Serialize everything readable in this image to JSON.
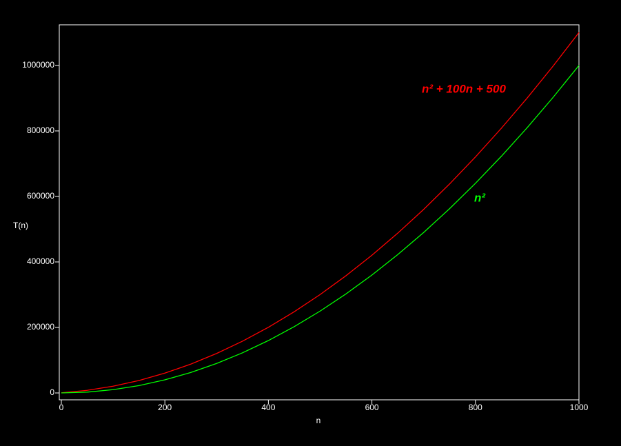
{
  "chart_data": {
    "type": "line",
    "x_label": "n",
    "y_label": "T(n)",
    "x": [
      0,
      50,
      100,
      150,
      200,
      250,
      300,
      350,
      400,
      450,
      500,
      550,
      600,
      650,
      700,
      750,
      800,
      850,
      900,
      950,
      1000
    ],
    "series": [
      {
        "name": "n² + 100n + 500",
        "color": "#ff0000",
        "values": [
          500,
          8000,
          20500,
          38000,
          60500,
          88000,
          120500,
          158000,
          200500,
          248000,
          300500,
          358000,
          420500,
          488000,
          560500,
          638000,
          720500,
          808000,
          900500,
          998000,
          1100500
        ]
      },
      {
        "name": "n²",
        "color": "#00ff00",
        "values": [
          0,
          2500,
          10000,
          22500,
          40000,
          62500,
          90000,
          122500,
          160000,
          202500,
          250000,
          302500,
          360000,
          422500,
          490000,
          562500,
          640000,
          722500,
          810000,
          902500,
          1000000
        ]
      }
    ],
    "xlim": [
      0,
      1000
    ],
    "xticks": [
      0,
      200,
      400,
      600,
      800,
      1000
    ],
    "ylim": [
      -21000,
      1124000
    ],
    "yticks": [
      0,
      200000,
      400000,
      600000,
      800000,
      1000000
    ]
  }
}
